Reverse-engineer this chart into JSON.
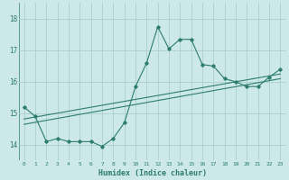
{
  "title": "",
  "xlabel": "Humidex (Indice chaleur)",
  "xlim": [
    -0.5,
    23.5
  ],
  "ylim": [
    13.5,
    18.5
  ],
  "yticks": [
    14,
    15,
    16,
    17,
    18
  ],
  "xticks": [
    0,
    1,
    2,
    3,
    4,
    5,
    6,
    7,
    8,
    9,
    10,
    11,
    12,
    13,
    14,
    15,
    16,
    17,
    18,
    19,
    20,
    21,
    22,
    23
  ],
  "xtick_labels": [
    "0",
    "1",
    "2",
    "3",
    "4",
    "5",
    "6",
    "7",
    "8",
    "9",
    "10",
    "11",
    "12",
    "13",
    "14",
    "15",
    "16",
    "17",
    "18",
    "19",
    "20",
    "21",
    "22",
    "23"
  ],
  "line_color": "#2d7d6f",
  "bg_color": "#cce8e8",
  "grid_color": "#aacfcf",
  "x": [
    0,
    1,
    2,
    3,
    4,
    5,
    6,
    7,
    8,
    9,
    10,
    11,
    12,
    13,
    14,
    15,
    16,
    17,
    18,
    19,
    20,
    21,
    22,
    23
  ],
  "y": [
    15.2,
    14.9,
    14.1,
    14.2,
    14.1,
    14.1,
    14.1,
    13.95,
    14.2,
    14.7,
    15.85,
    16.6,
    17.75,
    17.05,
    17.35,
    17.35,
    16.55,
    16.5,
    16.1,
    16.0,
    15.85,
    15.85,
    16.15,
    16.4
  ],
  "trend1_x": [
    0,
    23
  ],
  "trend1_y": [
    14.82,
    16.25
  ],
  "trend2_x": [
    0,
    23
  ],
  "trend2_y": [
    14.65,
    16.1
  ]
}
